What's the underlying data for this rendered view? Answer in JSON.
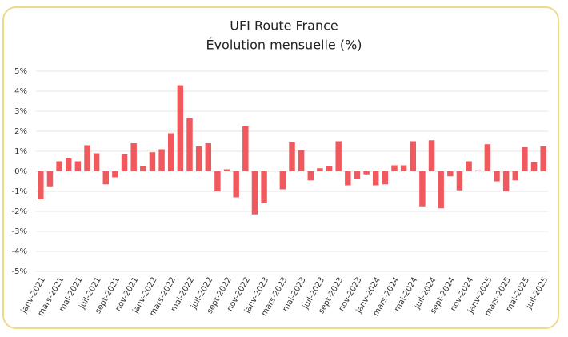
{
  "chart_data": {
    "type": "bar",
    "title": "UFI Route France",
    "subtitle": "Évolution mensuelle (%)",
    "categories": [
      "janv-2021",
      null,
      "mars-2021",
      null,
      "mai-2021",
      null,
      "juil-2021",
      null,
      "sept-2021",
      null,
      "nov-2021",
      null,
      "janv-2022",
      null,
      "mars-2022",
      null,
      "mai-2022",
      null,
      "juil-2022",
      null,
      "sept-2022",
      null,
      "nov-2022",
      null,
      "janv-2023",
      null,
      "mars-2023",
      null,
      "mai-2023",
      null,
      "juil-2023",
      null,
      "sept-2023",
      null,
      "nov-2023",
      null,
      "janv-2024",
      null,
      "mars-2024",
      null,
      "mai-2024",
      null,
      "juil-2024",
      null,
      "sept-2024",
      null,
      "nov-2024",
      null,
      "janv-2025",
      null,
      "mars-2025",
      null,
      "mai-2025",
      null,
      "juil-2025"
    ],
    "values": [
      -1.4,
      -0.75,
      0.5,
      0.65,
      0.5,
      1.3,
      0.9,
      -0.65,
      -0.3,
      0.85,
      1.4,
      0.25,
      0.95,
      1.1,
      1.9,
      4.3,
      2.65,
      1.25,
      1.4,
      -1.0,
      0.1,
      -1.3,
      2.25,
      -2.15,
      -1.6,
      0,
      -0.9,
      1.45,
      1.05,
      -0.45,
      0.15,
      0.25,
      1.5,
      -0.7,
      -0.4,
      -0.15,
      -0.7,
      -0.65,
      0.3,
      0.3,
      1.5,
      -1.75,
      1.55,
      -1.85,
      -0.25,
      -0.95,
      0.5,
      0.05,
      1.35,
      -0.5,
      -1.0,
      -0.45,
      1.2,
      0.45,
      1.25
    ],
    "color": "#f0595d",
    "ylim": [
      -5,
      5
    ],
    "yticks": [
      {
        "value": -5,
        "label": "-5%"
      },
      {
        "value": -4,
        "label": "-4%"
      },
      {
        "value": -3,
        "label": "-3%"
      },
      {
        "value": -2,
        "label": "-2%"
      },
      {
        "value": -1,
        "label": "-1%"
      },
      {
        "value": 0,
        "label": "0%"
      },
      {
        "value": 1,
        "label": "1%"
      },
      {
        "value": 2,
        "label": "2%"
      },
      {
        "value": 3,
        "label": "3%"
      },
      {
        "value": 4,
        "label": "4%"
      },
      {
        "value": 5,
        "label": "5%"
      }
    ],
    "grid": true
  }
}
